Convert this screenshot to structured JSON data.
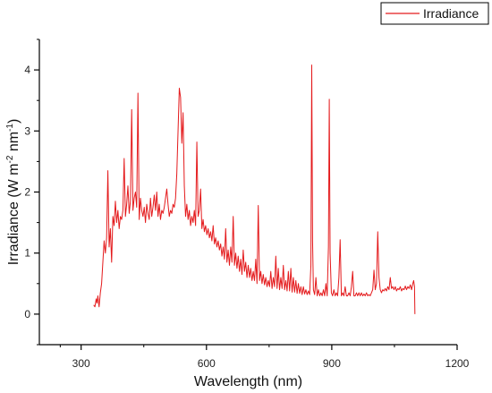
{
  "chart_data": {
    "type": "line",
    "title": "",
    "xlabel": "Wavelength (nm)",
    "ylabel": {
      "main": "Irradiance (W m",
      "sup1": "-2",
      "mid": " nm",
      "sup2": "-1",
      "end": ")"
    },
    "xlim": [
      200,
      1200
    ],
    "ylim": [
      -0.5,
      4.5
    ],
    "xticks": [
      300,
      600,
      900,
      1200
    ],
    "yticks": [
      0,
      1,
      2,
      3,
      4
    ],
    "grid": false,
    "legend": {
      "position": "top-right",
      "entries": [
        "Irradiance"
      ]
    },
    "series": [
      {
        "name": "Irradiance",
        "color": "#e41a1c",
        "points": [
          [
            330,
            0.15
          ],
          [
            333,
            0.12
          ],
          [
            336,
            0.25
          ],
          [
            338,
            0.18
          ],
          [
            340,
            0.3
          ],
          [
            343,
            0.12
          ],
          [
            346,
            0.35
          ],
          [
            349,
            0.5
          ],
          [
            352,
            0.85
          ],
          [
            355,
            1.2
          ],
          [
            358,
            1.0
          ],
          [
            361,
            1.25
          ],
          [
            364,
            2.35
          ],
          [
            367,
            1.1
          ],
          [
            370,
            1.4
          ],
          [
            373,
            0.85
          ],
          [
            376,
            1.6
          ],
          [
            379,
            1.45
          ],
          [
            382,
            1.85
          ],
          [
            385,
            1.5
          ],
          [
            388,
            1.7
          ],
          [
            391,
            1.4
          ],
          [
            394,
            1.6
          ],
          [
            397,
            1.55
          ],
          [
            400,
            1.7
          ],
          [
            403,
            2.55
          ],
          [
            406,
            1.6
          ],
          [
            409,
            1.8
          ],
          [
            412,
            2.1
          ],
          [
            415,
            1.65
          ],
          [
            418,
            1.85
          ],
          [
            421,
            3.35
          ],
          [
            424,
            1.7
          ],
          [
            427,
            1.9
          ],
          [
            430,
            2.0
          ],
          [
            433,
            1.75
          ],
          [
            436,
            3.62
          ],
          [
            439,
            1.55
          ],
          [
            442,
            1.9
          ],
          [
            445,
            1.7
          ],
          [
            448,
            1.6
          ],
          [
            451,
            1.75
          ],
          [
            454,
            1.5
          ],
          [
            457,
            1.8
          ],
          [
            460,
            1.65
          ],
          [
            463,
            1.55
          ],
          [
            466,
            1.9
          ],
          [
            469,
            1.6
          ],
          [
            472,
            1.75
          ],
          [
            475,
            1.95
          ],
          [
            478,
            1.7
          ],
          [
            481,
            2.0
          ],
          [
            484,
            1.6
          ],
          [
            487,
            1.8
          ],
          [
            490,
            1.55
          ],
          [
            493,
            1.7
          ],
          [
            496,
            1.65
          ],
          [
            499,
            1.75
          ],
          [
            502,
            1.9
          ],
          [
            505,
            2.05
          ],
          [
            508,
            1.8
          ],
          [
            511,
            1.6
          ],
          [
            514,
            1.7
          ],
          [
            517,
            1.65
          ],
          [
            520,
            1.8
          ],
          [
            523,
            1.75
          ],
          [
            526,
            1.9
          ],
          [
            529,
            2.3
          ],
          [
            532,
            3.0
          ],
          [
            535,
            3.7
          ],
          [
            538,
            3.55
          ],
          [
            541,
            2.8
          ],
          [
            544,
            3.3
          ],
          [
            547,
            2.1
          ],
          [
            550,
            1.6
          ],
          [
            553,
            1.8
          ],
          [
            556,
            1.55
          ],
          [
            559,
            1.7
          ],
          [
            562,
            1.45
          ],
          [
            565,
            1.6
          ],
          [
            568,
            1.5
          ],
          [
            571,
            1.7
          ],
          [
            574,
            1.45
          ],
          [
            577,
            2.82
          ],
          [
            580,
            1.6
          ],
          [
            583,
            1.7
          ],
          [
            586,
            2.05
          ],
          [
            589,
            1.4
          ],
          [
            592,
            1.55
          ],
          [
            595,
            1.35
          ],
          [
            598,
            1.45
          ],
          [
            601,
            1.3
          ],
          [
            604,
            1.4
          ],
          [
            607,
            1.25
          ],
          [
            610,
            1.35
          ],
          [
            613,
            1.2
          ],
          [
            616,
            1.45
          ],
          [
            619,
            1.15
          ],
          [
            622,
            1.25
          ],
          [
            625,
            1.1
          ],
          [
            628,
            1.2
          ],
          [
            631,
            1.05
          ],
          [
            634,
            1.15
          ],
          [
            637,
            0.95
          ],
          [
            640,
            1.1
          ],
          [
            643,
            0.9
          ],
          [
            646,
            1.4
          ],
          [
            649,
            0.85
          ],
          [
            652,
            1.05
          ],
          [
            655,
            0.8
          ],
          [
            658,
            1.1
          ],
          [
            661,
            0.85
          ],
          [
            664,
            1.6
          ],
          [
            667,
            0.8
          ],
          [
            670,
            1.0
          ],
          [
            673,
            0.75
          ],
          [
            676,
            0.95
          ],
          [
            679,
            0.7
          ],
          [
            682,
            0.9
          ],
          [
            685,
            0.65
          ],
          [
            688,
            1.05
          ],
          [
            691,
            0.7
          ],
          [
            694,
            0.85
          ],
          [
            697,
            0.6
          ],
          [
            700,
            0.8
          ],
          [
            703,
            0.6
          ],
          [
            706,
            0.75
          ],
          [
            709,
            0.55
          ],
          [
            712,
            0.7
          ],
          [
            715,
            0.55
          ],
          [
            718,
            0.9
          ],
          [
            721,
            0.5
          ],
          [
            724,
            1.78
          ],
          [
            727,
            0.55
          ],
          [
            730,
            0.7
          ],
          [
            733,
            0.5
          ],
          [
            736,
            0.65
          ],
          [
            739,
            0.48
          ],
          [
            742,
            0.6
          ],
          [
            745,
            0.45
          ],
          [
            748,
            0.55
          ],
          [
            751,
            0.45
          ],
          [
            754,
            0.7
          ],
          [
            757,
            0.42
          ],
          [
            760,
            0.6
          ],
          [
            763,
            0.45
          ],
          [
            766,
            0.95
          ],
          [
            769,
            0.42
          ],
          [
            772,
            0.75
          ],
          [
            775,
            0.4
          ],
          [
            778,
            0.6
          ],
          [
            781,
            0.42
          ],
          [
            784,
            0.8
          ],
          [
            787,
            0.4
          ],
          [
            790,
            0.55
          ],
          [
            793,
            0.38
          ],
          [
            796,
            0.7
          ],
          [
            799,
            0.38
          ],
          [
            802,
            0.75
          ],
          [
            805,
            0.36
          ],
          [
            808,
            0.6
          ],
          [
            811,
            0.36
          ],
          [
            814,
            0.55
          ],
          [
            817,
            0.34
          ],
          [
            820,
            0.5
          ],
          [
            823,
            0.34
          ],
          [
            826,
            0.45
          ],
          [
            829,
            0.32
          ],
          [
            832,
            0.45
          ],
          [
            835,
            0.33
          ],
          [
            838,
            0.4
          ],
          [
            841,
            0.32
          ],
          [
            844,
            0.38
          ],
          [
            847,
            0.32
          ],
          [
            850,
            0.8
          ],
          [
            852,
            4.08
          ],
          [
            854,
            1.2
          ],
          [
            856,
            0.4
          ],
          [
            859,
            0.32
          ],
          [
            862,
            0.6
          ],
          [
            865,
            0.3
          ],
          [
            868,
            0.4
          ],
          [
            871,
            0.3
          ],
          [
            874,
            0.35
          ],
          [
            877,
            0.3
          ],
          [
            880,
            0.4
          ],
          [
            883,
            0.3
          ],
          [
            886,
            0.5
          ],
          [
            889,
            0.3
          ],
          [
            892,
            1.1
          ],
          [
            894,
            3.52
          ],
          [
            896,
            1.0
          ],
          [
            899,
            0.35
          ],
          [
            902,
            0.3
          ],
          [
            905,
            0.4
          ],
          [
            908,
            0.3
          ],
          [
            911,
            0.35
          ],
          [
            914,
            0.3
          ],
          [
            917,
            0.6
          ],
          [
            920,
            1.22
          ],
          [
            923,
            0.3
          ],
          [
            926,
            0.35
          ],
          [
            929,
            0.3
          ],
          [
            932,
            0.45
          ],
          [
            935,
            0.3
          ],
          [
            938,
            0.3
          ],
          [
            941,
            0.35
          ],
          [
            944,
            0.3
          ],
          [
            947,
            0.45
          ],
          [
            950,
            0.7
          ],
          [
            953,
            0.3
          ],
          [
            956,
            0.3
          ],
          [
            959,
            0.35
          ],
          [
            962,
            0.3
          ],
          [
            965,
            0.35
          ],
          [
            968,
            0.3
          ],
          [
            971,
            0.35
          ],
          [
            974,
            0.3
          ],
          [
            977,
            0.33
          ],
          [
            980,
            0.3
          ],
          [
            983,
            0.35
          ],
          [
            986,
            0.3
          ],
          [
            989,
            0.32
          ],
          [
            992,
            0.3
          ],
          [
            995,
            0.35
          ],
          [
            998,
            0.4
          ],
          [
            1001,
            0.72
          ],
          [
            1004,
            0.4
          ],
          [
            1007,
            0.5
          ],
          [
            1010,
            1.35
          ],
          [
            1013,
            0.6
          ],
          [
            1016,
            0.4
          ],
          [
            1019,
            0.35
          ],
          [
            1022,
            0.4
          ],
          [
            1025,
            0.38
          ],
          [
            1028,
            0.42
          ],
          [
            1031,
            0.38
          ],
          [
            1034,
            0.45
          ],
          [
            1037,
            0.4
          ],
          [
            1040,
            0.6
          ],
          [
            1043,
            0.42
          ],
          [
            1046,
            0.45
          ],
          [
            1049,
            0.4
          ],
          [
            1052,
            0.45
          ],
          [
            1055,
            0.38
          ],
          [
            1058,
            0.42
          ],
          [
            1061,
            0.4
          ],
          [
            1064,
            0.45
          ],
          [
            1067,
            0.38
          ],
          [
            1070,
            0.42
          ],
          [
            1073,
            0.4
          ],
          [
            1076,
            0.46
          ],
          [
            1079,
            0.4
          ],
          [
            1082,
            0.45
          ],
          [
            1085,
            0.42
          ],
          [
            1088,
            0.48
          ],
          [
            1091,
            0.4
          ],
          [
            1094,
            0.5
          ],
          [
            1096,
            0.55
          ],
          [
            1098,
            0.45
          ],
          [
            1099,
            0.0
          ]
        ]
      }
    ]
  }
}
